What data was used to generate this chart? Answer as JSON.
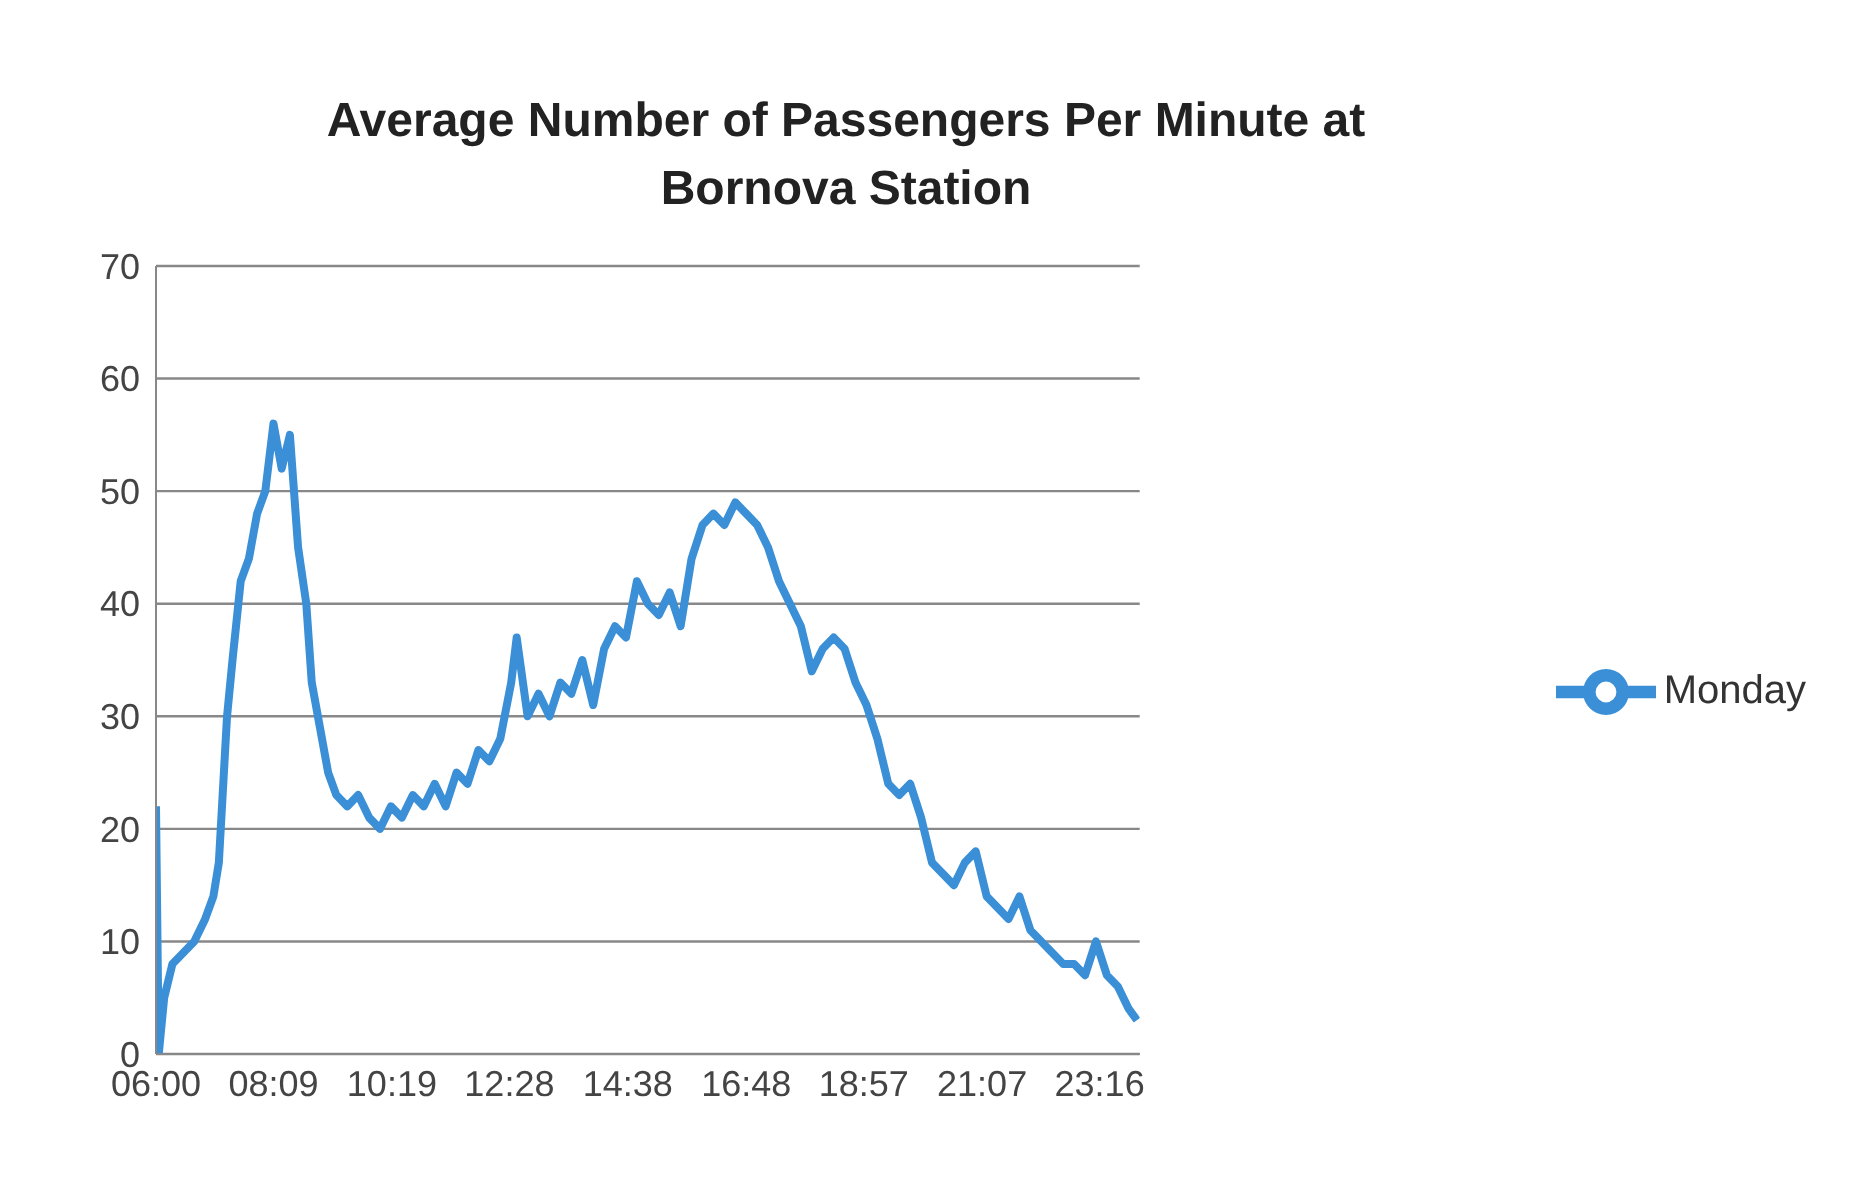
{
  "chart_data": {
    "type": "line",
    "title": "Average Number of Passengers Per Minute at Bornova Station",
    "x": [
      6.0,
      6.05,
      6.15,
      6.3,
      6.5,
      6.7,
      6.9,
      7.05,
      7.15,
      7.3,
      7.4,
      7.55,
      7.7,
      7.85,
      8.0,
      8.15,
      8.3,
      8.45,
      8.6,
      8.75,
      8.85,
      9.0,
      9.15,
      9.3,
      9.5,
      9.7,
      9.9,
      10.1,
      10.3,
      10.5,
      10.7,
      10.9,
      11.1,
      11.3,
      11.5,
      11.7,
      11.9,
      12.1,
      12.3,
      12.5,
      12.6,
      12.8,
      13.0,
      13.2,
      13.4,
      13.6,
      13.8,
      14.0,
      14.2,
      14.4,
      14.6,
      14.8,
      15.0,
      15.2,
      15.4,
      15.6,
      15.8,
      16.0,
      16.2,
      16.4,
      16.6,
      16.8,
      17.0,
      17.2,
      17.4,
      17.6,
      17.8,
      18.0,
      18.2,
      18.4,
      18.6,
      18.8,
      19.0,
      19.2,
      19.4,
      19.6,
      19.8,
      20.0,
      20.2,
      20.4,
      20.6,
      20.8,
      21.0,
      21.2,
      21.4,
      21.6,
      21.8,
      22.0,
      22.2,
      22.4,
      22.6,
      22.8,
      23.0,
      23.2,
      23.4,
      23.6,
      23.8,
      23.95
    ],
    "series": [
      {
        "name": "Monday",
        "color": "#3a8fd6",
        "values": [
          22,
          0,
          5,
          8,
          9,
          10,
          12,
          14,
          17,
          30,
          35,
          42,
          44,
          48,
          50,
          56,
          52,
          55,
          45,
          40,
          33,
          29,
          25,
          23,
          22,
          23,
          21,
          20,
          22,
          21,
          23,
          22,
          24,
          22,
          25,
          24,
          27,
          26,
          28,
          33,
          37,
          30,
          32,
          30,
          33,
          32,
          35,
          31,
          36,
          38,
          37,
          42,
          40,
          39,
          41,
          38,
          44,
          47,
          48,
          47,
          49,
          48,
          47,
          45,
          42,
          40,
          38,
          34,
          36,
          37,
          36,
          33,
          31,
          28,
          24,
          23,
          24,
          21,
          17,
          16,
          15,
          17,
          18,
          14,
          13,
          12,
          14,
          11,
          10,
          9,
          8,
          8,
          7,
          10,
          7,
          6,
          4,
          3
        ]
      }
    ],
    "xlim": [
      6,
      24
    ],
    "xticks": [
      {
        "value": 6,
        "label": "06:00"
      },
      {
        "value": 8.15,
        "label": "08:09"
      },
      {
        "value": 10.3167,
        "label": "10:19"
      },
      {
        "value": 12.4667,
        "label": "12:28"
      },
      {
        "value": 14.6333,
        "label": "14:38"
      },
      {
        "value": 16.8,
        "label": "16:48"
      },
      {
        "value": 18.95,
        "label": "18:57"
      },
      {
        "value": 21.1167,
        "label": "21:07"
      },
      {
        "value": 23.2667,
        "label": "23:16"
      }
    ],
    "ylim": [
      0,
      70
    ],
    "yticks": [
      0,
      10,
      20,
      30,
      40,
      50,
      60,
      70
    ],
    "grid": "y",
    "legend": "right",
    "marker": "none",
    "line_style": "solid"
  }
}
